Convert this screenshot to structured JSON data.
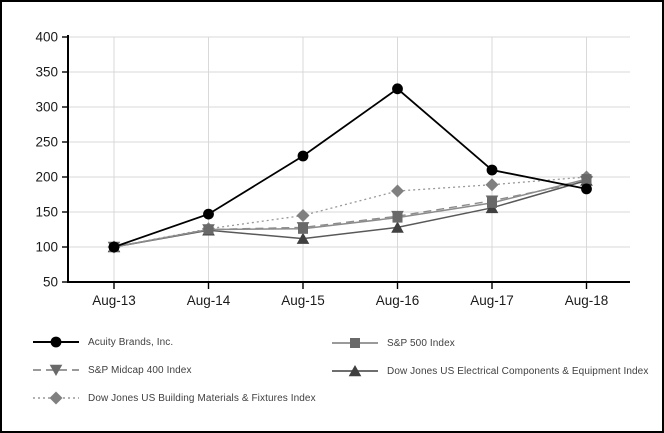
{
  "chart_data": {
    "type": "line",
    "title": "",
    "xlabel": "",
    "ylabel": "",
    "categories": [
      "Aug-13",
      "Aug-14",
      "Aug-15",
      "Aug-16",
      "Aug-17",
      "Aug-18"
    ],
    "y_ticks": [
      50,
      100,
      150,
      200,
      250,
      300,
      350,
      400
    ],
    "ylim": [
      50,
      400
    ],
    "grid": true,
    "legend_position": "bottom-two-columns",
    "series": [
      {
        "name": "Acuity Brands, Inc.",
        "marker": "circle",
        "line_style": "solid",
        "line_color": "#000000",
        "marker_color": "#000000",
        "values": [
          100,
          147,
          230,
          326,
          210,
          183
        ]
      },
      {
        "name": "S&P 500 Index",
        "marker": "square",
        "line_style": "solid",
        "line_color": "#8c8c8c",
        "marker_color": "#696969",
        "values": [
          100,
          125,
          126,
          142,
          163,
          197
        ]
      },
      {
        "name": "S&P Midcap 400 Index",
        "marker": "triangle-down",
        "line_style": "dashed",
        "line_color": "#8c8c8c",
        "marker_color": "#696969",
        "values": [
          100,
          125,
          128,
          144,
          166,
          194
        ]
      },
      {
        "name": "Dow Jones US Electrical Components & Equipment Index",
        "marker": "triangle-up",
        "line_style": "solid",
        "line_color": "#595959",
        "marker_color": "#404040",
        "values": [
          100,
          124,
          112,
          128,
          156,
          195
        ]
      },
      {
        "name": "Dow Jones US Building Materials & Fixtures Index",
        "marker": "diamond",
        "line_style": "dotted",
        "line_color": "#999999",
        "marker_color": "#808080",
        "values": [
          100,
          126,
          145,
          180,
          189,
          200
        ]
      }
    ],
    "colors": {
      "gridline": "#d9d9d9",
      "axis": "#000000",
      "tick_label": "#1a1a1a",
      "legend_text": "#404040",
      "background": "#ffffff"
    }
  }
}
